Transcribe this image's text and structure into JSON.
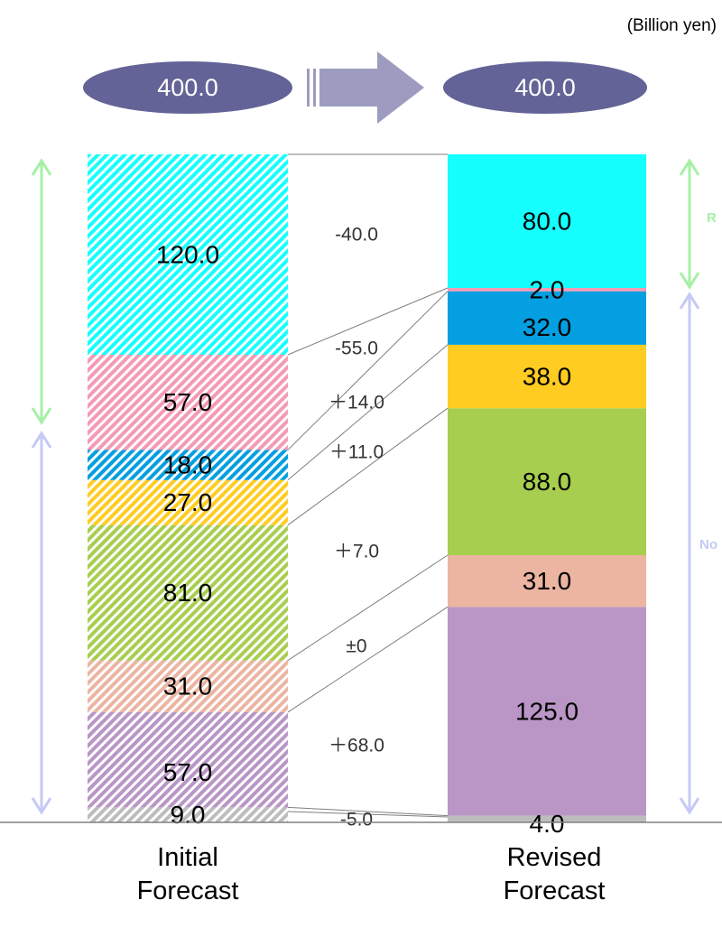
{
  "unit_label": "(Billion yen)",
  "chart_data": {
    "type": "bar",
    "stacked": true,
    "unit": "(Billion yen)",
    "categories": [
      "Initial Forecast",
      "Revised Forecast"
    ],
    "totals": [
      "400.0",
      "400.0"
    ],
    "segments_bottom_to_top": [
      {
        "color": "#bdbdbd",
        "initial": 9.0,
        "revised": 4.0,
        "initial_label": "9.0",
        "revised_label": "4.0",
        "change": "-5.0"
      },
      {
        "color": "#b996c6",
        "initial": 57.0,
        "revised": 125.0,
        "initial_label": "57.0",
        "revised_label": "125.0",
        "change": "＋68.0"
      },
      {
        "color": "#ebb5a2",
        "initial": 31.0,
        "revised": 31.0,
        "initial_label": "31.0",
        "revised_label": "31.0",
        "change": "±0"
      },
      {
        "color": "#a7ce4e",
        "initial": 81.0,
        "revised": 88.0,
        "initial_label": "81.0",
        "revised_label": "88.0",
        "change": "＋7.0"
      },
      {
        "color": "#ffcc22",
        "initial": 27.0,
        "revised": 38.0,
        "initial_label": "27.0",
        "revised_label": "38.0",
        "change": "＋11.0"
      },
      {
        "color": "#049fe0",
        "initial": 18.0,
        "revised": 32.0,
        "initial_label": "18.0",
        "revised_label": "32.0",
        "change": "＋14.0"
      },
      {
        "color": "#f49ab5",
        "initial": 57.0,
        "revised": 2.0,
        "initial_label": "57.0",
        "revised_label": "2.0",
        "change": "-55.0"
      },
      {
        "color": "#14fffe",
        "initial": 120.0,
        "revised": 80.0,
        "initial_label": "120.0",
        "revised_label": "80.0",
        "change": "-40.0"
      }
    ],
    "side_brackets": [
      {
        "color": "#a6f0a6",
        "label": "R"
      },
      {
        "color": "#c5c9f5",
        "label": "No"
      }
    ],
    "ylim": [
      0,
      400
    ]
  },
  "xlabels": {
    "initial": [
      "Initial",
      "Forecast"
    ],
    "revised": [
      "Revised",
      "Forecast"
    ]
  }
}
